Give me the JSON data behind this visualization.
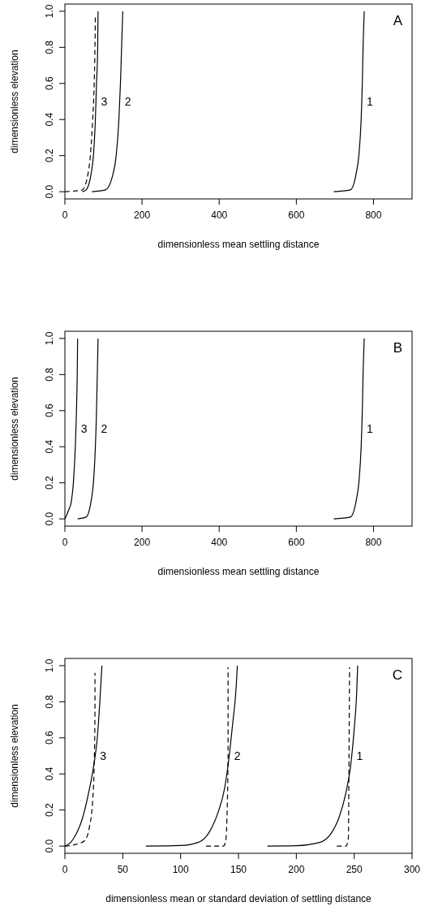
{
  "chart_data": [
    {
      "type": "line",
      "xlabel": "dimensionless mean settling distance",
      "ylabel": "dimensionless elevation",
      "xlim": [
        0,
        900
      ],
      "ylim": [
        -0.04,
        1.04
      ],
      "xticks": [
        0,
        200,
        400,
        600,
        800
      ],
      "yticks": [
        {
          "value": 0,
          "label": "0.0"
        },
        {
          "value": 0.2,
          "label": "0.2"
        },
        {
          "value": 0.4,
          "label": "0.4"
        },
        {
          "value": 0.6,
          "label": "0.6"
        },
        {
          "value": 0.8,
          "label": "0.8"
        },
        {
          "value": 1,
          "label": "1.0"
        }
      ],
      "series": [
        {
          "name": "1",
          "color": "#000000",
          "line_style": "solid",
          "x": [
            697,
            740,
            755,
            762,
            768,
            771,
            773,
            776
          ],
          "values": [
            0,
            0.01,
            0.1,
            0.2,
            0.4,
            0.6,
            0.8,
            1
          ]
        },
        {
          "name": "2",
          "color": "#000000",
          "line_style": "solid",
          "x": [
            70,
            105,
            125,
            133,
            140,
            144,
            147,
            150
          ],
          "values": [
            0,
            0.01,
            0.1,
            0.2,
            0.4,
            0.6,
            0.8,
            1
          ]
        },
        {
          "name": "3",
          "color": "#000000",
          "line_style": "solid",
          "x": [
            45,
            55,
            68,
            74,
            79,
            82,
            85,
            86
          ],
          "values": [
            0,
            0.01,
            0.1,
            0.2,
            0.4,
            0.6,
            0.8,
            1
          ]
        },
        {
          "color": "#000000",
          "line_style": "dashed",
          "x": [
            0,
            45,
            60,
            66,
            72,
            76,
            78,
            79
          ],
          "values": [
            0,
            0.01,
            0.1,
            0.2,
            0.4,
            0.6,
            0.8,
            0.98
          ]
        }
      ],
      "annotations": [
        "A"
      ]
    },
    {
      "type": "line",
      "xlabel": "dimensionless mean settling distance",
      "ylabel": "dimensionless elevation",
      "xlim": [
        0,
        900
      ],
      "ylim": [
        -0.04,
        1.04
      ],
      "xticks": [
        0,
        200,
        400,
        600,
        800
      ],
      "yticks": [
        {
          "value": 0,
          "label": "0.0"
        },
        {
          "value": 0.2,
          "label": "0.2"
        },
        {
          "value": 0.4,
          "label": "0.4"
        },
        {
          "value": 0.6,
          "label": "0.6"
        },
        {
          "value": 0.8,
          "label": "0.8"
        },
        {
          "value": 1,
          "label": "1.0"
        }
      ],
      "series": [
        {
          "name": "1",
          "color": "#000000",
          "line_style": "solid",
          "x": [
            697,
            740,
            755,
            762,
            768,
            771,
            773,
            776
          ],
          "values": [
            0,
            0.01,
            0.1,
            0.2,
            0.4,
            0.6,
            0.8,
            1
          ]
        },
        {
          "name": "2",
          "color": "#000000",
          "line_style": "solid",
          "x": [
            33,
            55,
            68,
            74,
            79,
            82,
            84,
            86
          ],
          "values": [
            0,
            0.01,
            0.1,
            0.2,
            0.4,
            0.6,
            0.8,
            1
          ]
        },
        {
          "name": "3",
          "color": "#000000",
          "line_style": "solid",
          "x": [
            0,
            10,
            17,
            22,
            27,
            30,
            32,
            33
          ],
          "values": [
            0,
            0.05,
            0.1,
            0.2,
            0.4,
            0.6,
            0.8,
            1
          ]
        }
      ],
      "annotations": [
        "B"
      ]
    },
    {
      "type": "line",
      "xlabel": "dimensionless mean or standard deviation of settling distance",
      "ylabel": "dimensionless elevation",
      "xlim": [
        0,
        300
      ],
      "ylim": [
        -0.04,
        1.04
      ],
      "xticks": [
        0,
        50,
        100,
        150,
        200,
        250,
        300
      ],
      "yticks": [
        {
          "value": 0,
          "label": "0.0"
        },
        {
          "value": 0.2,
          "label": "0.2"
        },
        {
          "value": 0.4,
          "label": "0.4"
        },
        {
          "value": 0.6,
          "label": "0.6"
        },
        {
          "value": 0.8,
          "label": "0.8"
        },
        {
          "value": 1,
          "label": "1.0"
        }
      ],
      "series": [
        {
          "name": "1",
          "color": "#000000",
          "line_style": "solid",
          "x": [
            175,
            200,
            220,
            230,
            237,
            243,
            247,
            250,
            252,
            253
          ],
          "values": [
            0,
            0.002,
            0.02,
            0.07,
            0.16,
            0.3,
            0.45,
            0.65,
            0.83,
            1
          ]
        },
        {
          "color": "#000000",
          "line_style": "dashed",
          "x": [
            235,
            243,
            245,
            245.5,
            246
          ],
          "values": [
            0,
            0,
            0.05,
            0.5,
            0.99
          ]
        },
        {
          "name": "2",
          "color": "#000000",
          "line_style": "solid",
          "x": [
            70,
            100,
            115,
            125,
            132,
            138,
            142,
            145,
            148,
            149
          ],
          "values": [
            0,
            0.003,
            0.02,
            0.08,
            0.18,
            0.32,
            0.5,
            0.68,
            0.88,
            1
          ]
        },
        {
          "color": "#000000",
          "line_style": "dashed",
          "x": [
            122,
            137,
            139,
            140,
            141,
            141
          ],
          "values": [
            0,
            0,
            0.03,
            0.15,
            0.5,
            0.99
          ]
        },
        {
          "name": "3",
          "color": "#000000",
          "line_style": "solid",
          "x": [
            0,
            5,
            10,
            15,
            20,
            25,
            28,
            30,
            32
          ],
          "values": [
            0,
            0.02,
            0.07,
            0.15,
            0.28,
            0.45,
            0.6,
            0.78,
            1
          ]
        },
        {
          "color": "#000000",
          "line_style": "dashed",
          "x": [
            0,
            10,
            17,
            21,
            24,
            25.5,
            26,
            26
          ],
          "values": [
            0,
            0.01,
            0.03,
            0.1,
            0.25,
            0.5,
            0.75,
            0.96
          ]
        }
      ],
      "annotations": [
        "C"
      ]
    }
  ]
}
